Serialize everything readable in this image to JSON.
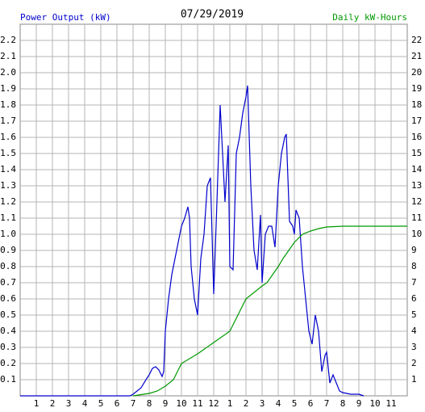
{
  "chart_data": {
    "type": "line",
    "title": "07/29/2019",
    "y_label": "Power Output (kW)",
    "y2_label": "Daily kW-Hours",
    "xlim": [
      0,
      24
    ],
    "xticks": [
      {
        "value": 1,
        "label": "1"
      },
      {
        "value": 2,
        "label": "2"
      },
      {
        "value": 3,
        "label": "3"
      },
      {
        "value": 4,
        "label": "4"
      },
      {
        "value": 5,
        "label": "5"
      },
      {
        "value": 6,
        "label": "6"
      },
      {
        "value": 7,
        "label": "7"
      },
      {
        "value": 8,
        "label": "8"
      },
      {
        "value": 9,
        "label": "9"
      },
      {
        "value": 10,
        "label": "10"
      },
      {
        "value": 11,
        "label": "11"
      },
      {
        "value": 12,
        "label": "12"
      },
      {
        "value": 13,
        "label": "1"
      },
      {
        "value": 14,
        "label": "2"
      },
      {
        "value": 15,
        "label": "3"
      },
      {
        "value": 16,
        "label": "4"
      },
      {
        "value": 17,
        "label": "5"
      },
      {
        "value": 18,
        "label": "6"
      },
      {
        "value": 19,
        "label": "7"
      },
      {
        "value": 20,
        "label": "8"
      },
      {
        "value": 21,
        "label": "9"
      },
      {
        "value": 22,
        "label": "10"
      },
      {
        "value": 23,
        "label": "11"
      }
    ],
    "ylim": [
      0,
      2.3
    ],
    "yticks": [
      0.1,
      0.2,
      0.3,
      0.4,
      0.5,
      0.6,
      0.7,
      0.8,
      0.9,
      {
        "value": 1,
        "label": "1.0"
      },
      1.1,
      1.2,
      1.3,
      1.4,
      1.5,
      1.6,
      1.7,
      1.8,
      1.9,
      {
        "value": 2,
        "label": "2.0"
      },
      2.1,
      2.2
    ],
    "y2lim": [
      0,
      23
    ],
    "y2ticks": [
      1,
      2,
      3,
      4,
      5,
      6,
      7,
      8,
      9,
      10,
      11,
      12,
      13,
      14,
      15,
      16,
      17,
      18,
      19,
      20,
      21,
      22
    ],
    "grid": true,
    "series": [
      {
        "color": "#0000cc",
        "x": [
          0,
          6.8,
          7.0,
          7.5,
          7.8,
          8.0,
          8.2,
          8.4,
          8.6,
          8.8,
          8.9,
          9.0,
          9.2,
          9.4,
          9.6,
          9.8,
          10.0,
          10.2,
          10.4,
          10.5,
          10.6,
          10.8,
          11.0,
          11.2,
          11.4,
          11.6,
          11.8,
          12.0,
          12.2,
          12.4,
          12.5,
          12.7,
          12.9,
          13.0,
          13.2,
          13.4,
          13.6,
          13.8,
          14.0,
          14.1,
          14.3,
          14.5,
          14.7,
          14.9,
          15.0,
          15.2,
          15.4,
          15.6,
          15.8,
          16.0,
          16.2,
          16.4,
          16.5,
          16.7,
          16.9,
          17.0,
          17.1,
          17.3,
          17.5,
          17.7,
          17.9,
          18.1,
          18.3,
          18.5,
          18.7,
          18.9,
          19.0,
          19.2,
          19.4,
          19.6,
          19.8,
          20.0,
          20.5,
          21.0,
          21.3
        ],
        "values": [
          0,
          0,
          0.01,
          0.05,
          0.1,
          0.13,
          0.17,
          0.18,
          0.16,
          0.12,
          0.15,
          0.4,
          0.6,
          0.75,
          0.85,
          0.95,
          1.05,
          1.1,
          1.17,
          1.1,
          0.8,
          0.6,
          0.5,
          0.85,
          1.0,
          1.3,
          1.35,
          0.63,
          1.2,
          1.8,
          1.6,
          1.2,
          1.55,
          0.8,
          0.78,
          1.5,
          1.6,
          1.75,
          1.85,
          1.92,
          1.3,
          0.9,
          0.78,
          1.12,
          0.7,
          1.0,
          1.05,
          1.05,
          0.92,
          1.3,
          1.5,
          1.6,
          1.62,
          1.08,
          1.05,
          1.0,
          1.15,
          1.1,
          0.8,
          0.6,
          0.4,
          0.32,
          0.5,
          0.4,
          0.15,
          0.25,
          0.27,
          0.08,
          0.13,
          0.08,
          0.03,
          0.02,
          0.01,
          0.01,
          0
        ]
      },
      {
        "color": "#009900",
        "axis": "y2",
        "x": [
          7.0,
          8.0,
          8.5,
          9.0,
          9.5,
          10.0,
          11.0,
          12.0,
          13.0,
          13.5,
          14.0,
          15.0,
          15.3,
          16.0,
          16.3,
          17.0,
          17.5,
          18.0,
          18.5,
          19.0,
          20.0,
          24.0
        ],
        "values": [
          0,
          0.15,
          0.3,
          0.6,
          1.0,
          2.0,
          2.6,
          3.3,
          4.0,
          5.0,
          6.0,
          6.8,
          7.0,
          8.0,
          8.5,
          9.5,
          10.0,
          10.2,
          10.35,
          10.45,
          10.5,
          10.5
        ]
      }
    ]
  }
}
